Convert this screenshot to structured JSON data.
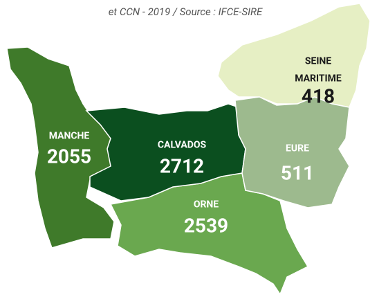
{
  "subtitle": "et CCN - 2019 / Source : IFCE-SIRE",
  "regions": [
    {
      "name": [
        "MANCHE"
      ],
      "value": 2055,
      "color": "#3f7a2a"
    },
    {
      "name": [
        "CALVADOS"
      ],
      "value": 2712,
      "color": "#0b4f1f"
    },
    {
      "name": [
        "SEINE",
        "MARITIME"
      ],
      "value": 418,
      "color": "#e6efc4"
    },
    {
      "name": [
        "EURE"
      ],
      "value": 511,
      "color": "#9dba8e"
    },
    {
      "name": [
        "ORNE"
      ],
      "value": 2539,
      "color": "#6aa84f"
    }
  ]
}
